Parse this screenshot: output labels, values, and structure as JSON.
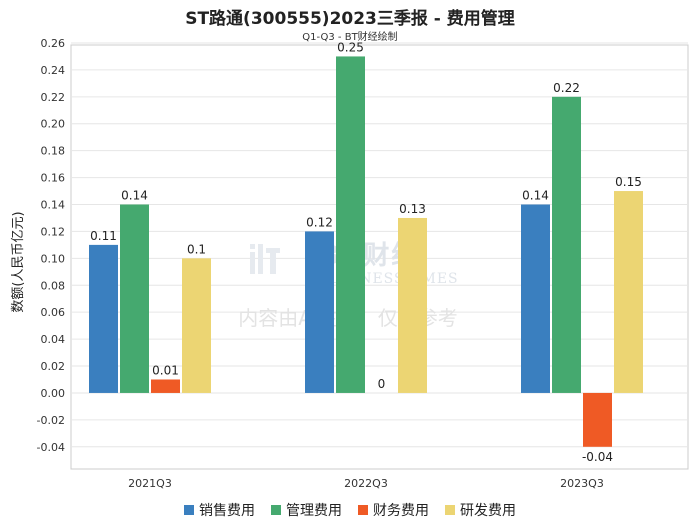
{
  "chart_data": {
    "type": "bar",
    "title": "ST路通(300555)2023三季报 - 费用管理",
    "subtitle": "Q1-Q3 - BT财经绘制",
    "xlabel": "",
    "ylabel": "数额(人民币亿元)",
    "ylim": [
      -0.05,
      0.26
    ],
    "yticks": [
      "0.26",
      "0.24",
      "0.22",
      "0.20",
      "0.18",
      "0.16",
      "0.14",
      "0.12",
      "0.10",
      "0.08",
      "0.06",
      "0.04",
      "0.02",
      "0.00",
      "-0.02",
      "-0.04"
    ],
    "grid": true,
    "legend_position": "bottom",
    "categories": [
      "2021Q3",
      "2022Q3",
      "2023Q3"
    ],
    "series": [
      {
        "name": "销售费用",
        "color": "#3a7fbf",
        "values": [
          0.11,
          0.12,
          0.14
        ],
        "labels": [
          "0.11",
          "0.12",
          "0.14"
        ]
      },
      {
        "name": "管理费用",
        "color": "#45a96f",
        "values": [
          0.14,
          0.25,
          0.22
        ],
        "labels": [
          "0.14",
          "0.25",
          "0.22"
        ]
      },
      {
        "name": "财务费用",
        "color": "#ef5a25",
        "values": [
          0.01,
          0,
          -0.04
        ],
        "labels": [
          "0.01",
          "0",
          "-0.04"
        ]
      },
      {
        "name": "研发费用",
        "color": "#ecd573",
        "values": [
          0.1,
          0.13,
          0.15
        ],
        "labels": [
          "0.1",
          "0.13",
          "0.15"
        ]
      }
    ]
  },
  "watermark": {
    "brand": "BT财经",
    "brand_en": "BUSINESSTIMES",
    "note": "内容由AI生成，仅供参考"
  }
}
